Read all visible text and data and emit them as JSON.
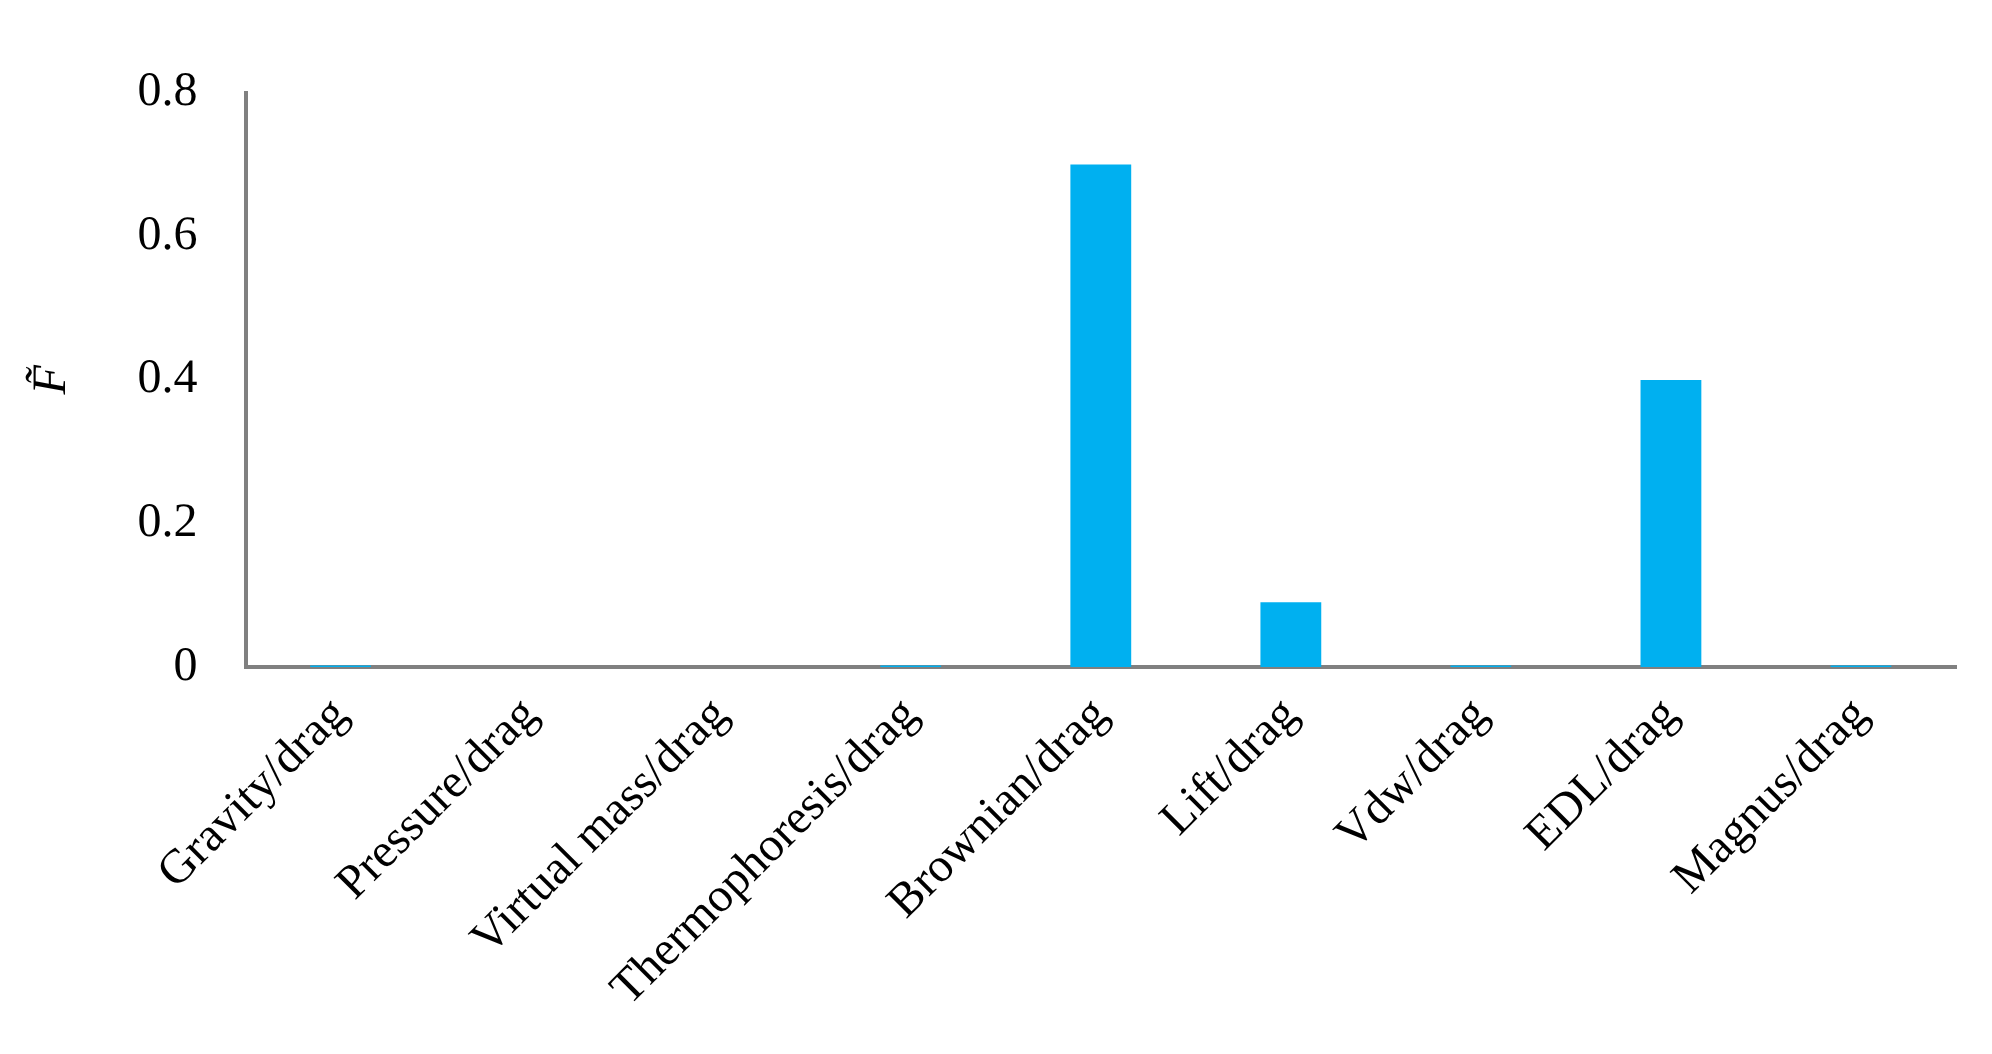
{
  "chart_data": {
    "type": "bar",
    "ylabel": "F̃",
    "categories": [
      "Gravity/drag",
      "Pressure/drag",
      "Virtual mass/drag",
      "Thermophoresis/drag",
      "Brownian/drag",
      "Lift/drag",
      "Vdw/drag",
      "EDL/drag",
      "Magnus/drag"
    ],
    "values": [
      0.002,
      0,
      0,
      0.002,
      0.7,
      0.09,
      0.002,
      0.4,
      0.002
    ],
    "color": "#00b0f0",
    "ylim": [
      0,
      0.8
    ],
    "yticks": [
      0,
      0.2,
      0.4,
      0.6,
      0.8
    ],
    "grid": false
  }
}
